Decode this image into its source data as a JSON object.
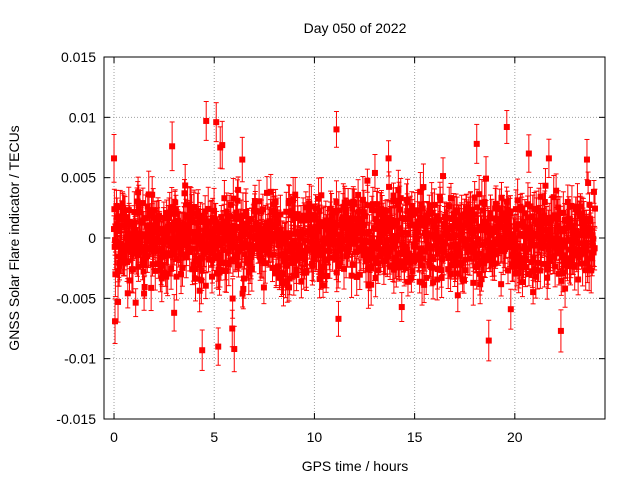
{
  "chart_data": {
    "type": "scatter",
    "title": "Day 050 of 2022",
    "xlabel": "GPS time / hours",
    "ylabel": "GNSS Solar Flare indicator / TECUs",
    "xlim": [
      -0.5,
      24.5
    ],
    "ylim": [
      -0.015,
      0.015
    ],
    "x_ticks": [
      0,
      5,
      10,
      15,
      20
    ],
    "x_tick_labels": [
      "0",
      "5",
      "10",
      "15",
      "20"
    ],
    "y_ticks": [
      -0.015,
      -0.01,
      -0.005,
      0,
      0.005,
      0.01,
      0.015
    ],
    "y_tick_labels": [
      "-0.015",
      "-0.01",
      "-0.005",
      "0",
      "0.005",
      "0.01",
      "0.015"
    ],
    "grid": true,
    "legend": "none",
    "colors": {
      "series": "#ff0000",
      "axis": "#000000",
      "grid": "#a0a0a0"
    },
    "marker": "square-with-error-bars",
    "series": [
      {
        "x_range": [
          0,
          24
        ],
        "typical_value_range": [
          -0.004,
          0.004
        ],
        "typical_error": 0.0015,
        "outliers": [
          {
            "x": 0.0,
            "y": 0.0066
          },
          {
            "x": 0.05,
            "y": -0.0069
          },
          {
            "x": 0.2,
            "y": -0.0053
          },
          {
            "x": 1.5,
            "y": -0.0046
          },
          {
            "x": 2.9,
            "y": 0.0076
          },
          {
            "x": 3.0,
            "y": -0.0062
          },
          {
            "x": 4.4,
            "y": -0.0093
          },
          {
            "x": 4.6,
            "y": 0.0097
          },
          {
            "x": 5.1,
            "y": 0.0096
          },
          {
            "x": 5.2,
            "y": -0.009
          },
          {
            "x": 5.3,
            "y": 0.0075
          },
          {
            "x": 5.4,
            "y": 0.0077
          },
          {
            "x": 5.9,
            "y": -0.0075
          },
          {
            "x": 6.0,
            "y": -0.0092
          },
          {
            "x": 6.4,
            "y": 0.0065
          },
          {
            "x": 11.1,
            "y": 0.009
          },
          {
            "x": 11.2,
            "y": -0.0067
          },
          {
            "x": 13.7,
            "y": 0.0066
          },
          {
            "x": 18.1,
            "y": 0.0078
          },
          {
            "x": 18.7,
            "y": -0.0085
          },
          {
            "x": 19.6,
            "y": 0.0092
          },
          {
            "x": 19.8,
            "y": -0.0059
          },
          {
            "x": 20.7,
            "y": 0.007
          },
          {
            "x": 21.7,
            "y": 0.0066
          },
          {
            "x": 22.3,
            "y": -0.0077
          },
          {
            "x": 23.6,
            "y": 0.0065
          }
        ]
      }
    ]
  }
}
